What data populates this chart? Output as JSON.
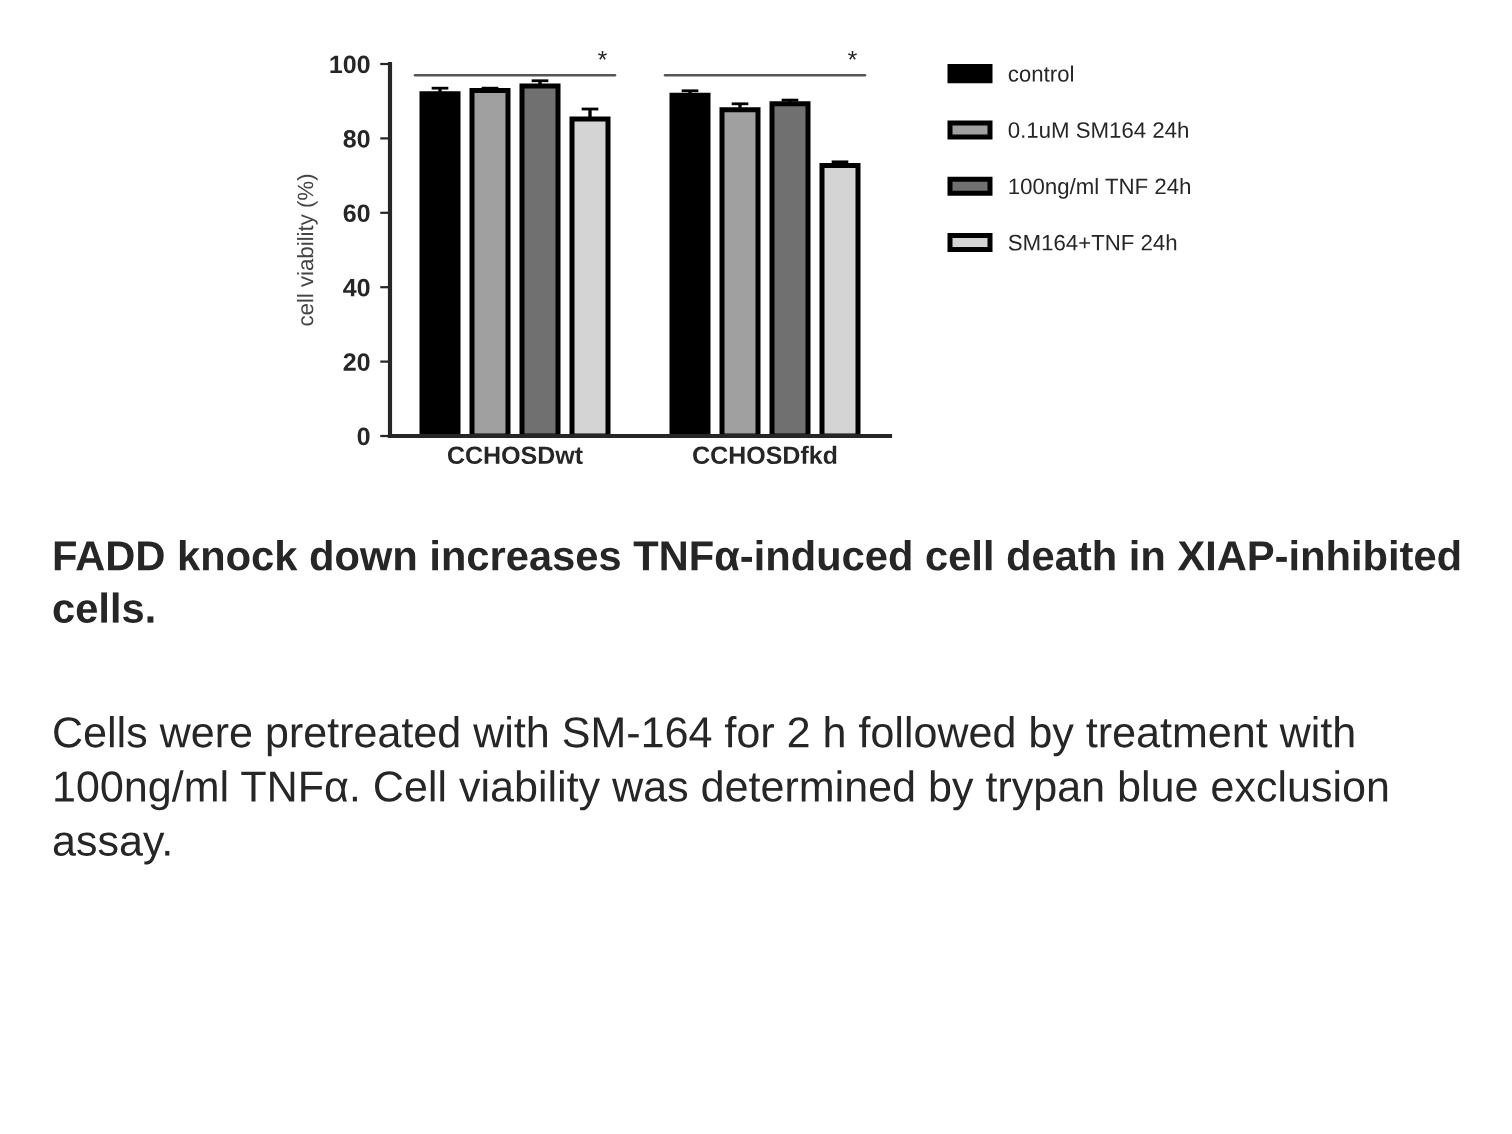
{
  "chart_data": {
    "type": "bar",
    "title": "FADD knock down increases TNFα-induced cell death in XIAP-inhibited cells.",
    "ylabel": "cell viability (%)",
    "categories": [
      "CCHOSDwt",
      "CCHOSDfkd"
    ],
    "series": [
      {
        "name": "control",
        "color": "#000000",
        "values": [
          92,
          91.6
        ],
        "errors": [
          1.5,
          1.2
        ]
      },
      {
        "name": "0.1uM SM164 24h",
        "color": "#a0a0a0",
        "values": [
          92.9,
          87.7
        ],
        "errors": [
          0.6,
          1.6
        ]
      },
      {
        "name": "100ng/ml TNF 24h",
        "color": "#707070",
        "values": [
          94.1,
          89.3
        ],
        "errors": [
          1.4,
          1
        ]
      },
      {
        "name": "SM164+TNF 24h",
        "color": "#d4d4d4",
        "values": [
          85.2,
          72.7
        ],
        "errors": [
          2.7,
          1
        ]
      }
    ],
    "ylim": [
      0,
      100
    ],
    "yticks": [
      0,
      20,
      40,
      60,
      80,
      100
    ],
    "legend": "right",
    "grid": false,
    "annotations": [
      "*",
      "*",
      "Cells were pretreated with SM-164 for 2 h followed by treatment with 100ng/ml TNFα. Cell viability was determined by trypan blue exclusion assay."
    ]
  }
}
